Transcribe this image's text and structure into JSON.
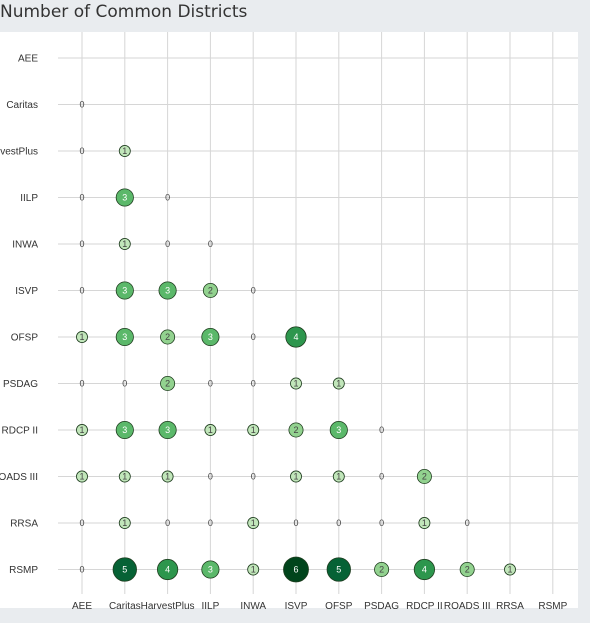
{
  "chart_data": {
    "type": "scatter",
    "title": "Number of Common Districts",
    "xlabel": "",
    "ylabel": "",
    "categories_x": [
      "AEE",
      "Caritas",
      "HarvestPlus",
      "IILP",
      "INWA",
      "ISVP",
      "OFSP",
      "PSDAG",
      "RDCP II",
      "ROADS III",
      "RRSA",
      "RSMP"
    ],
    "categories_y": [
      "AEE",
      "Caritas",
      "HarvestPlus",
      "IILP",
      "INWA",
      "ISVP",
      "OFSP",
      "PSDAG",
      "RDCP II",
      "ROADS III",
      "RRSA",
      "RSMP"
    ],
    "grid": true,
    "legend": "none",
    "color_scale": [
      "#edf8e9",
      "#00441b"
    ],
    "points": [
      {
        "row": "Caritas",
        "col": "AEE",
        "value": 0,
        "label": "0"
      },
      {
        "row": "HarvestPlus",
        "col": "AEE",
        "value": 0,
        "label": "0"
      },
      {
        "row": "HarvestPlus",
        "col": "Caritas",
        "value": 1,
        "label": "1"
      },
      {
        "row": "IILP",
        "col": "AEE",
        "value": 0,
        "label": "0"
      },
      {
        "row": "IILP",
        "col": "Caritas",
        "value": 3,
        "label": "3"
      },
      {
        "row": "IILP",
        "col": "HarvestPlus",
        "value": 0,
        "label": "0"
      },
      {
        "row": "INWA",
        "col": "AEE",
        "value": 0,
        "label": "0"
      },
      {
        "row": "INWA",
        "col": "Caritas",
        "value": 1,
        "label": "1"
      },
      {
        "row": "INWA",
        "col": "HarvestPlus",
        "value": 0,
        "label": "0"
      },
      {
        "row": "INWA",
        "col": "IILP",
        "value": 0,
        "label": "0"
      },
      {
        "row": "ISVP",
        "col": "AEE",
        "value": 0,
        "label": "0"
      },
      {
        "row": "ISVP",
        "col": "Caritas",
        "value": 3,
        "label": "3"
      },
      {
        "row": "ISVP",
        "col": "HarvestPlus",
        "value": 3,
        "label": "3"
      },
      {
        "row": "ISVP",
        "col": "IILP",
        "value": 2,
        "label": "2"
      },
      {
        "row": "ISVP",
        "col": "INWA",
        "value": 0,
        "label": "0"
      },
      {
        "row": "OFSP",
        "col": "AEE",
        "value": 1,
        "label": "1"
      },
      {
        "row": "OFSP",
        "col": "Caritas",
        "value": 3,
        "label": "3"
      },
      {
        "row": "OFSP",
        "col": "HarvestPlus",
        "value": 2,
        "label": "2"
      },
      {
        "row": "OFSP",
        "col": "IILP",
        "value": 3,
        "label": "3"
      },
      {
        "row": "OFSP",
        "col": "INWA",
        "value": 0,
        "label": "0"
      },
      {
        "row": "OFSP",
        "col": "ISVP",
        "value": 4,
        "label": "4"
      },
      {
        "row": "PSDAG",
        "col": "AEE",
        "value": 0,
        "label": "0"
      },
      {
        "row": "PSDAG",
        "col": "Caritas",
        "value": 0,
        "label": "0"
      },
      {
        "row": "PSDAG",
        "col": "HarvestPlus",
        "value": 2,
        "label": "2"
      },
      {
        "row": "PSDAG",
        "col": "IILP",
        "value": 0,
        "label": "0"
      },
      {
        "row": "PSDAG",
        "col": "INWA",
        "value": 0,
        "label": "0"
      },
      {
        "row": "PSDAG",
        "col": "ISVP",
        "value": 1,
        "label": "1"
      },
      {
        "row": "PSDAG",
        "col": "OFSP",
        "value": 1,
        "label": "1"
      },
      {
        "row": "RDCP II",
        "col": "AEE",
        "value": 1,
        "label": "1"
      },
      {
        "row": "RDCP II",
        "col": "Caritas",
        "value": 3,
        "label": "3"
      },
      {
        "row": "RDCP II",
        "col": "HarvestPlus",
        "value": 3,
        "label": "3"
      },
      {
        "row": "RDCP II",
        "col": "IILP",
        "value": 1,
        "label": "1"
      },
      {
        "row": "RDCP II",
        "col": "INWA",
        "value": 1,
        "label": "1"
      },
      {
        "row": "RDCP II",
        "col": "ISVP",
        "value": 2,
        "label": "2"
      },
      {
        "row": "RDCP II",
        "col": "OFSP",
        "value": 3,
        "label": "3"
      },
      {
        "row": "RDCP II",
        "col": "PSDAG",
        "value": 0,
        "label": "0"
      },
      {
        "row": "ROADS III",
        "col": "AEE",
        "value": 1,
        "label": "1"
      },
      {
        "row": "ROADS III",
        "col": "Caritas",
        "value": 1,
        "label": "1"
      },
      {
        "row": "ROADS III",
        "col": "HarvestPlus",
        "value": 1,
        "label": "1"
      },
      {
        "row": "ROADS III",
        "col": "IILP",
        "value": 0,
        "label": "0"
      },
      {
        "row": "ROADS III",
        "col": "INWA",
        "value": 0,
        "label": "0"
      },
      {
        "row": "ROADS III",
        "col": "ISVP",
        "value": 1,
        "label": "1"
      },
      {
        "row": "ROADS III",
        "col": "OFSP",
        "value": 1,
        "label": "1"
      },
      {
        "row": "ROADS III",
        "col": "PSDAG",
        "value": 0,
        "label": "0"
      },
      {
        "row": "ROADS III",
        "col": "RDCP II",
        "value": 2,
        "label": "2"
      },
      {
        "row": "RRSA",
        "col": "AEE",
        "value": 0,
        "label": "0"
      },
      {
        "row": "RRSA",
        "col": "Caritas",
        "value": 1,
        "label": "1"
      },
      {
        "row": "RRSA",
        "col": "HarvestPlus",
        "value": 0,
        "label": "0"
      },
      {
        "row": "RRSA",
        "col": "IILP",
        "value": 0,
        "label": "0"
      },
      {
        "row": "RRSA",
        "col": "INWA",
        "value": 1,
        "label": "1"
      },
      {
        "row": "RRSA",
        "col": "ISVP",
        "value": 0,
        "label": "0"
      },
      {
        "row": "RRSA",
        "col": "OFSP",
        "value": 0,
        "label": "0"
      },
      {
        "row": "RRSA",
        "col": "PSDAG",
        "value": 0,
        "label": "0"
      },
      {
        "row": "RRSA",
        "col": "RDCP II",
        "value": 1,
        "label": "1"
      },
      {
        "row": "RRSA",
        "col": "ROADS III",
        "value": 0,
        "label": "0"
      },
      {
        "row": "RSMP",
        "col": "AEE",
        "value": 0,
        "label": "0"
      },
      {
        "row": "RSMP",
        "col": "Caritas",
        "value": 5,
        "label": "5"
      },
      {
        "row": "RSMP",
        "col": "HarvestPlus",
        "value": 4,
        "label": "4"
      },
      {
        "row": "RSMP",
        "col": "IILP",
        "value": 3,
        "label": "3"
      },
      {
        "row": "RSMP",
        "col": "INWA",
        "value": 1,
        "label": "1"
      },
      {
        "row": "RSMP",
        "col": "ISVP",
        "value": 6,
        "label": "6"
      },
      {
        "row": "RSMP",
        "col": "OFSP",
        "value": 5,
        "label": "5"
      },
      {
        "row": "RSMP",
        "col": "PSDAG",
        "value": 2,
        "label": "2"
      },
      {
        "row": "RSMP",
        "col": "RDCP II",
        "value": 4,
        "label": "4"
      },
      {
        "row": "RSMP",
        "col": "ROADS III",
        "value": 2,
        "label": "2"
      },
      {
        "row": "RSMP",
        "col": "RRSA",
        "value": 1,
        "label": "1"
      }
    ]
  }
}
